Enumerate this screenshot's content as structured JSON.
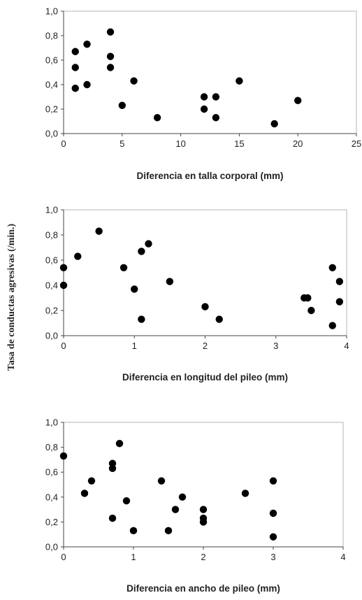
{
  "y_axis_label": "Tasa de conductas agresivas (/min.)",
  "chart_data": [
    {
      "type": "scatter",
      "title": "",
      "xlabel": "Diferencia en talla corporal (mm)",
      "ylabel": "",
      "xlim": [
        0,
        25
      ],
      "ylim": [
        0,
        1
      ],
      "xticks": [
        0,
        5,
        10,
        15,
        20,
        25
      ],
      "xtick_labels": [
        "0",
        "5",
        "10",
        "15",
        "20",
        "25"
      ],
      "yticks": [
        0,
        0.2,
        0.4,
        0.6,
        0.8,
        1.0
      ],
      "ytick_labels": [
        "0,0",
        "0,2",
        "0,4",
        "0,6",
        "0,8",
        "1,0"
      ],
      "grid": false,
      "points": [
        {
          "x": 1,
          "y": 0.67
        },
        {
          "x": 1,
          "y": 0.54
        },
        {
          "x": 1,
          "y": 0.37
        },
        {
          "x": 2,
          "y": 0.73
        },
        {
          "x": 2,
          "y": 0.4
        },
        {
          "x": 4,
          "y": 0.83
        },
        {
          "x": 4,
          "y": 0.63
        },
        {
          "x": 4,
          "y": 0.54
        },
        {
          "x": 5,
          "y": 0.23
        },
        {
          "x": 6,
          "y": 0.43
        },
        {
          "x": 8,
          "y": 0.13
        },
        {
          "x": 12,
          "y": 0.3
        },
        {
          "x": 12,
          "y": 0.2
        },
        {
          "x": 13,
          "y": 0.3
        },
        {
          "x": 13,
          "y": 0.13
        },
        {
          "x": 15,
          "y": 0.43
        },
        {
          "x": 18,
          "y": 0.08
        },
        {
          "x": 20,
          "y": 0.27
        }
      ]
    },
    {
      "type": "scatter",
      "title": "",
      "xlabel": "Diferencia en longitud del pileo (mm)",
      "ylabel": "",
      "xlim": [
        0,
        4
      ],
      "ylim": [
        0,
        1
      ],
      "xticks": [
        0,
        1,
        2,
        3,
        4
      ],
      "xtick_labels": [
        "0",
        "1",
        "2",
        "3",
        "4"
      ],
      "yticks": [
        0,
        0.2,
        0.4,
        0.6,
        0.8,
        1.0
      ],
      "ytick_labels": [
        "0,0",
        "0,2",
        "0,4",
        "0,6",
        "0,8",
        "1,0"
      ],
      "grid": false,
      "points": [
        {
          "x": 0,
          "y": 0.54
        },
        {
          "x": 0,
          "y": 0.4
        },
        {
          "x": 0.2,
          "y": 0.63
        },
        {
          "x": 0.5,
          "y": 0.83
        },
        {
          "x": 0.85,
          "y": 0.54
        },
        {
          "x": 1.0,
          "y": 0.37
        },
        {
          "x": 1.1,
          "y": 0.67
        },
        {
          "x": 1.1,
          "y": 0.13
        },
        {
          "x": 1.2,
          "y": 0.73
        },
        {
          "x": 1.5,
          "y": 0.43
        },
        {
          "x": 2.0,
          "y": 0.23
        },
        {
          "x": 2.2,
          "y": 0.13
        },
        {
          "x": 3.4,
          "y": 0.3
        },
        {
          "x": 3.45,
          "y": 0.3
        },
        {
          "x": 3.5,
          "y": 0.2
        },
        {
          "x": 3.8,
          "y": 0.54
        },
        {
          "x": 3.8,
          "y": 0.08
        },
        {
          "x": 3.9,
          "y": 0.43
        },
        {
          "x": 3.9,
          "y": 0.27
        }
      ]
    },
    {
      "type": "scatter",
      "title": "",
      "xlabel": "Diferencia en ancho de pileo (mm)",
      "ylabel": "",
      "xlim": [
        0,
        4
      ],
      "ylim": [
        0,
        1
      ],
      "xticks": [
        0,
        1,
        2,
        3,
        4
      ],
      "xtick_labels": [
        "0",
        "1",
        "2",
        "3",
        "4"
      ],
      "yticks": [
        0,
        0.2,
        0.4,
        0.6,
        0.8,
        1.0
      ],
      "ytick_labels": [
        "0,0",
        "0,2",
        "0,4",
        "0,6",
        "0,8",
        "1,0"
      ],
      "grid": false,
      "points": [
        {
          "x": 0,
          "y": 0.73
        },
        {
          "x": 0.3,
          "y": 0.43
        },
        {
          "x": 0.4,
          "y": 0.53
        },
        {
          "x": 0.7,
          "y": 0.67
        },
        {
          "x": 0.7,
          "y": 0.63
        },
        {
          "x": 0.7,
          "y": 0.23
        },
        {
          "x": 0.8,
          "y": 0.83
        },
        {
          "x": 0.9,
          "y": 0.37
        },
        {
          "x": 1.0,
          "y": 0.13
        },
        {
          "x": 1.4,
          "y": 0.53
        },
        {
          "x": 1.5,
          "y": 0.13
        },
        {
          "x": 1.6,
          "y": 0.3
        },
        {
          "x": 1.7,
          "y": 0.4
        },
        {
          "x": 2.0,
          "y": 0.3
        },
        {
          "x": 2.0,
          "y": 0.23
        },
        {
          "x": 2.0,
          "y": 0.2
        },
        {
          "x": 2.6,
          "y": 0.43
        },
        {
          "x": 3.0,
          "y": 0.53
        },
        {
          "x": 3.0,
          "y": 0.27
        },
        {
          "x": 3.0,
          "y": 0.08
        }
      ]
    }
  ]
}
